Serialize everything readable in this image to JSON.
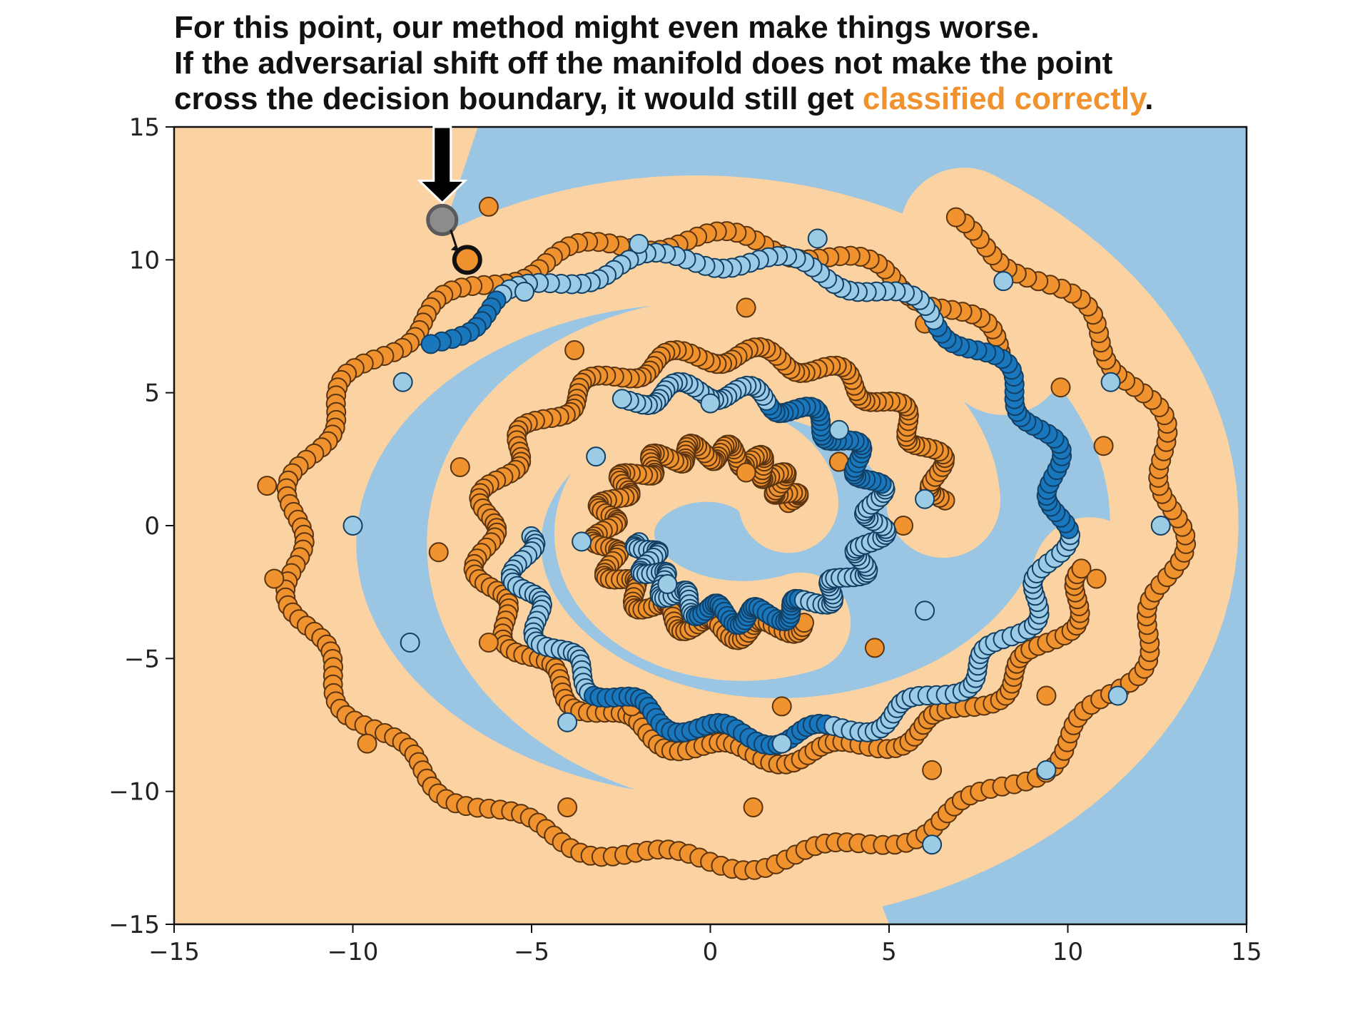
{
  "annotation": {
    "line1": "For this point, our method might even make things worse.",
    "line2": "If the adversarial shift off the manifold does not make the point",
    "line3_prefix": "cross the decision boundary, it would still get ",
    "line3_highlight": "classified correctly",
    "line3_suffix": "."
  },
  "chart_data": {
    "type": "scatter",
    "title": "",
    "xlabel": "",
    "ylabel": "",
    "xlim": [
      -15,
      15
    ],
    "ylim": [
      -15,
      15
    ],
    "x_ticks": [
      "−15",
      "−10",
      "−5",
      "0",
      "5",
      "10",
      "15"
    ],
    "y_ticks": [
      "15",
      "10",
      "5",
      "0",
      "−5",
      "−10",
      "−15"
    ],
    "x_tick_values": [
      -15,
      -10,
      -5,
      0,
      5,
      10,
      15
    ],
    "y_tick_values": [
      15,
      10,
      5,
      0,
      -5,
      -10,
      -15
    ],
    "grid": false,
    "legend": "none",
    "background_regions": {
      "orange_class_color": "#fbd3a2",
      "blue_class_color": "#9ac5e3"
    },
    "series": [
      {
        "color": "#f0922e",
        "edge": "#5a3410",
        "shape": "spiral",
        "arms": [
          {
            "from_deg": 20,
            "to_deg": 300,
            "r0": 1.9,
            "r1": 4.4,
            "center": [
              0.4,
              0.2
            ]
          },
          {
            "from_deg": 10,
            "to_deg": 350,
            "r0": 5.4,
            "r1": 9.6,
            "center": [
              1.2,
              0.0
            ]
          },
          {
            "from_deg": 40,
            "to_deg": 420,
            "r0": 10.7,
            "r1": 13.4,
            "center": [
              0.0,
              -0.3
            ]
          }
        ],
        "points": [
          [
            -6.2,
            12.0
          ],
          [
            -12.4,
            1.5
          ],
          [
            -12.2,
            -2.0
          ],
          [
            -9.6,
            -8.2
          ],
          [
            -4.0,
            -10.6
          ],
          [
            1.2,
            -10.6
          ],
          [
            6.2,
            -9.2
          ],
          [
            9.4,
            -6.4
          ],
          [
            10.8,
            -2.0
          ],
          [
            11.0,
            3.0
          ],
          [
            9.8,
            5.2
          ],
          [
            6.0,
            7.6
          ],
          [
            1.0,
            8.2
          ],
          [
            -3.8,
            6.6
          ],
          [
            -7.0,
            2.2
          ],
          [
            -7.6,
            -1.0
          ],
          [
            -6.2,
            -4.4
          ],
          [
            -2.2,
            -6.8
          ],
          [
            2.0,
            -6.8
          ],
          [
            4.6,
            -4.6
          ],
          [
            5.4,
            0.0
          ],
          [
            3.6,
            2.4
          ],
          [
            1.0,
            2.0
          ]
        ]
      },
      {
        "color": "#9ccbe6",
        "edge": "#123f63",
        "shape": "spiral",
        "arms": [
          {
            "from_deg": 190,
            "to_deg": 480,
            "r0": 2.2,
            "r1": 5.6,
            "center": [
              0.4,
              -0.2
            ]
          },
          {
            "from_deg": 180,
            "to_deg": 500,
            "r0": 6.0,
            "r1": 11.2,
            "center": [
              0.8,
              -0.4
            ]
          }
        ],
        "points": [
          [
            -1.2,
            -2.2
          ],
          [
            -3.6,
            -0.6
          ],
          [
            -3.2,
            2.6
          ],
          [
            0.0,
            4.6
          ],
          [
            3.6,
            3.6
          ],
          [
            6.0,
            1.0
          ],
          [
            6.0,
            -3.2
          ],
          [
            2.0,
            -8.2
          ],
          [
            -4.0,
            -7.4
          ],
          [
            -8.4,
            -4.4
          ],
          [
            -10.0,
            0.0
          ],
          [
            -8.6,
            5.4
          ],
          [
            -5.2,
            8.8
          ],
          [
            -2.0,
            10.6
          ],
          [
            3.0,
            10.8
          ],
          [
            8.2,
            9.2
          ],
          [
            11.2,
            5.4
          ],
          [
            12.6,
            0.0
          ],
          [
            11.4,
            -6.4
          ],
          [
            9.4,
            -9.2
          ],
          [
            6.2,
            -12.0
          ]
        ]
      }
    ],
    "highlighted_point": {
      "x": -7.5,
      "y": 11.5,
      "color": "#8c8c8c",
      "edge": "#5a5a5a"
    },
    "shifted_point": {
      "x": -6.8,
      "y": 10.0,
      "color": "#f0922e",
      "edge": "#111111"
    },
    "indicator_arrow_color": "#000000"
  }
}
